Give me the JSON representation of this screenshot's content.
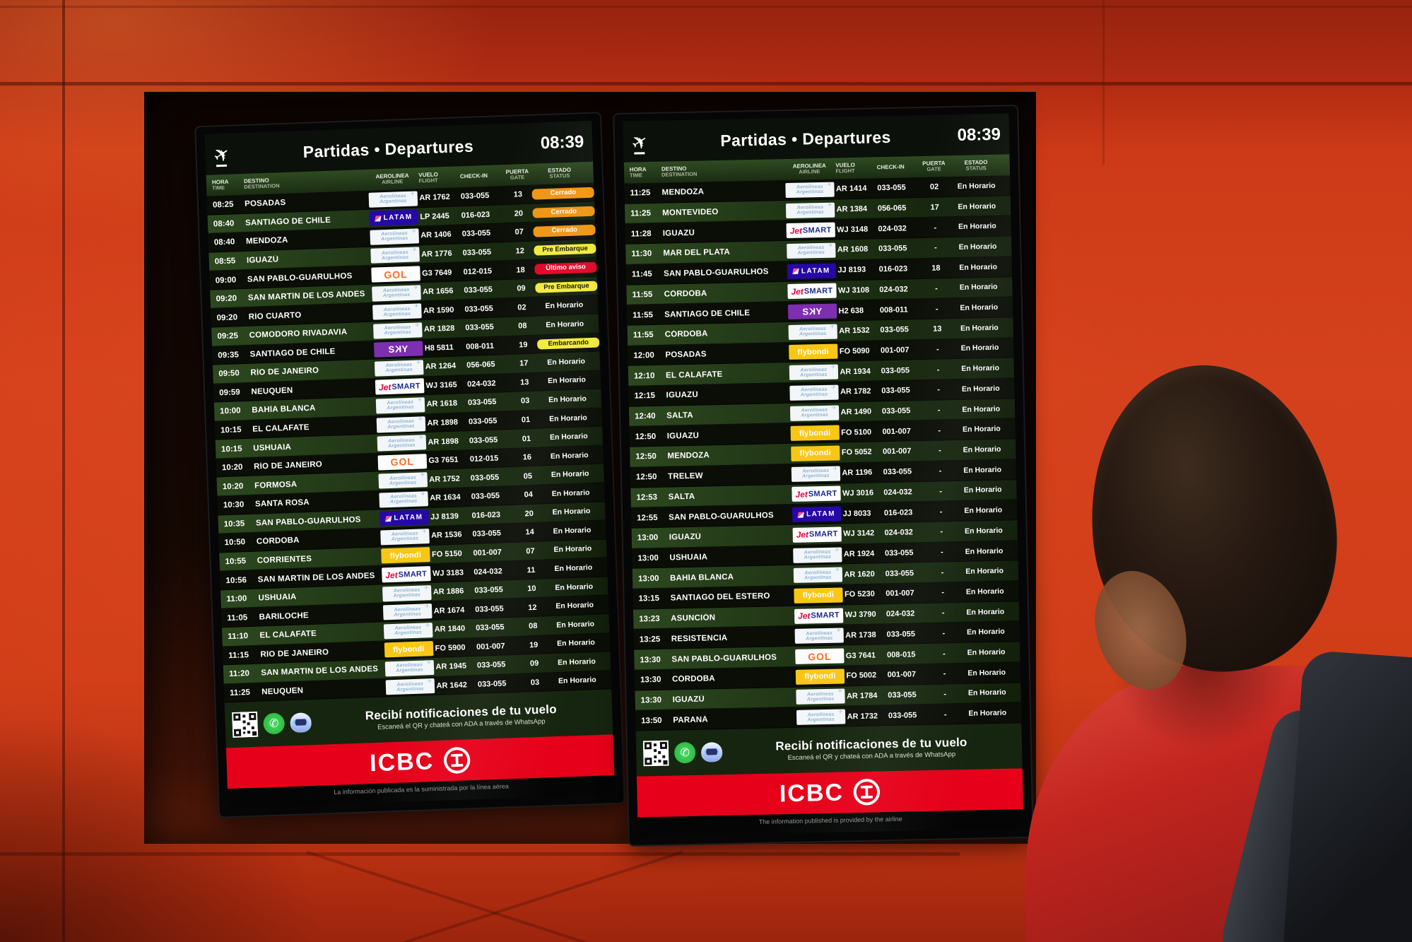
{
  "icons": {
    "plane": "✈",
    "whatsapp": "✆"
  },
  "columns": [
    {
      "es": "HORA",
      "en": "TIME"
    },
    {
      "es": "DESTINO",
      "en": "DESTINATION"
    },
    {
      "es": "AEROLINEA",
      "en": "AIRLINE"
    },
    {
      "es": "VUELO",
      "en": "FLIGHT"
    },
    {
      "es": "CHECK-IN",
      "en": ""
    },
    {
      "es": "PUERTA",
      "en": "GATE"
    },
    {
      "es": "ESTADO",
      "en": "STATUS"
    }
  ],
  "airlines": {
    "aerolineas": {
      "name": "Aerolíneas Argentinas",
      "line1": "Aerolíneas",
      "line2": "Argentinas"
    },
    "latam": {
      "name": "LATAM",
      "text": "LATAM"
    },
    "gol": {
      "name": "GOL",
      "text": "GOL"
    },
    "sky": {
      "name": "SKY",
      "s": "S",
      "k": "K",
      "y": "Y"
    },
    "jetsmart": {
      "name": "JetSMART",
      "jet": "Jet",
      "smart": "SMART"
    },
    "flybondi": {
      "name": "flybondi",
      "text": "flybondi"
    }
  },
  "statuses": {
    "cerrado": {
      "label": "Cerrado",
      "bg": "#ef9512",
      "fg": "#ffffff",
      "pill": true
    },
    "pre-embarque": {
      "label": "Pre Embarque",
      "bg": "#f2ea3d",
      "fg": "#14140a",
      "pill": true
    },
    "ultimo-aviso": {
      "label": "Último aviso",
      "bg": "#e00424",
      "fg": "#ffffff",
      "pill": true
    },
    "embarcando": {
      "label": "Embarcando",
      "bg": "#f2ea3d",
      "fg": "#14140a",
      "pill": true
    },
    "en-horario": {
      "label": "En Horario",
      "bg": "",
      "fg": "#ffffff",
      "pill": false
    }
  },
  "boards": [
    {
      "title": "Partidas • Departures",
      "clock": "08:39",
      "notify_title": "Recibí notificaciones de tu vuelo",
      "notify_subtitle": "Escaneá el QR y chateá con ADA a través de WhatsApp",
      "sponsor": "ICBC",
      "disclaimer": "La información publicada es la suministrada por la línea aérea",
      "rows": [
        [
          "08:25",
          "POSADAS",
          "aerolineas",
          "AR 1762",
          "033-055",
          "13",
          "cerrado"
        ],
        [
          "08:40",
          "SANTIAGO DE CHILE",
          "latam",
          "LP 2445",
          "016-023",
          "20",
          "cerrado"
        ],
        [
          "08:40",
          "MENDOZA",
          "aerolineas",
          "AR 1406",
          "033-055",
          "07",
          "cerrado"
        ],
        [
          "08:55",
          "IGUAZÚ",
          "aerolineas",
          "AR 1776",
          "033-055",
          "12",
          "pre-embarque"
        ],
        [
          "09:00",
          "SAN PABLO-GUARULHOS",
          "gol",
          "G3 7649",
          "012-015",
          "18",
          "ultimo-aviso"
        ],
        [
          "09:20",
          "SAN MARTÍN DE LOS ANDES",
          "aerolineas",
          "AR 1656",
          "033-055",
          "09",
          "pre-embarque"
        ],
        [
          "09:20",
          "RÍO CUARTO",
          "aerolineas",
          "AR 1590",
          "033-055",
          "02",
          "en-horario"
        ],
        [
          "09:25",
          "COMODORO RIVADAVIA",
          "aerolineas",
          "AR 1828",
          "033-055",
          "08",
          "en-horario"
        ],
        [
          "09:35",
          "SANTIAGO DE CHILE",
          "sky",
          "H8 5811",
          "008-011",
          "19",
          "embarcando"
        ],
        [
          "09:50",
          "RÍO DE JANEIRO",
          "aerolineas",
          "AR 1264",
          "056-065",
          "17",
          "en-horario"
        ],
        [
          "09:59",
          "NEUQUÉN",
          "jetsmart",
          "WJ 3165",
          "024-032",
          "13",
          "en-horario"
        ],
        [
          "10:00",
          "BAHÍA BLANCA",
          "aerolineas",
          "AR 1618",
          "033-055",
          "03",
          "en-horario"
        ],
        [
          "10:15",
          "EL CALAFATE",
          "aerolineas",
          "AR 1898",
          "033-055",
          "01",
          "en-horario"
        ],
        [
          "10:15",
          "USHUAIA",
          "aerolineas",
          "AR 1898",
          "033-055",
          "01",
          "en-horario"
        ],
        [
          "10:20",
          "RÍO DE JANEIRO",
          "gol",
          "G3 7651",
          "012-015",
          "16",
          "en-horario"
        ],
        [
          "10:20",
          "FORMOSA",
          "aerolineas",
          "AR 1752",
          "033-055",
          "05",
          "en-horario"
        ],
        [
          "10:30",
          "SANTA ROSA",
          "aerolineas",
          "AR 1634",
          "033-055",
          "04",
          "en-horario"
        ],
        [
          "10:35",
          "SAN PABLO-GUARULHOS",
          "latam",
          "JJ 8139",
          "016-023",
          "20",
          "en-horario"
        ],
        [
          "10:50",
          "CÓRDOBA",
          "aerolineas",
          "AR 1536",
          "033-055",
          "14",
          "en-horario"
        ],
        [
          "10:55",
          "CORRIENTES",
          "flybondi",
          "FO 5150",
          "001-007",
          "07",
          "en-horario"
        ],
        [
          "10:56",
          "SAN MARTÍN DE LOS ANDES",
          "jetsmart",
          "WJ 3183",
          "024-032",
          "11",
          "en-horario"
        ],
        [
          "11:00",
          "USHUAIA",
          "aerolineas",
          "AR 1886",
          "033-055",
          "10",
          "en-horario"
        ],
        [
          "11:05",
          "BARILOCHE",
          "aerolineas",
          "AR 1674",
          "033-055",
          "12",
          "en-horario"
        ],
        [
          "11:10",
          "EL CALAFATE",
          "aerolineas",
          "AR 1840",
          "033-055",
          "08",
          "en-horario"
        ],
        [
          "11:15",
          "RÍO DE JANEIRO",
          "flybondi",
          "FO 5900",
          "001-007",
          "19",
          "en-horario"
        ],
        [
          "11:20",
          "SAN MARTÍN DE LOS ANDES",
          "aerolineas",
          "AR 1945",
          "033-055",
          "09",
          "en-horario"
        ],
        [
          "11:25",
          "NEUQUÉN",
          "aerolineas",
          "AR 1642",
          "033-055",
          "03",
          "en-horario"
        ]
      ]
    },
    {
      "title": "Partidas • Departures",
      "clock": "08:39",
      "notify_title": "Recibí notificaciones de tu vuelo",
      "notify_subtitle": "Escaneá el QR y chateá con ADA a través de WhatsApp",
      "sponsor": "ICBC",
      "disclaimer": "The information published is provided by the airline",
      "rows": [
        [
          "11:25",
          "MENDOZA",
          "aerolineas",
          "AR 1414",
          "033-055",
          "02",
          "en-horario"
        ],
        [
          "11:25",
          "MONTEVIDEO",
          "aerolineas",
          "AR 1384",
          "056-065",
          "17",
          "en-horario"
        ],
        [
          "11:28",
          "IGUAZÚ",
          "jetsmart",
          "WJ 3148",
          "024-032",
          "-",
          "en-horario"
        ],
        [
          "11:30",
          "MAR DEL PLATA",
          "aerolineas",
          "AR 1608",
          "033-055",
          "-",
          "en-horario"
        ],
        [
          "11:45",
          "SAN PABLO-GUARULHOS",
          "latam",
          "JJ 8193",
          "016-023",
          "18",
          "en-horario"
        ],
        [
          "11:55",
          "CÓRDOBA",
          "jetsmart",
          "WJ 3108",
          "024-032",
          "-",
          "en-horario"
        ],
        [
          "11:55",
          "SANTIAGO DE CHILE",
          "sky",
          "H2 638",
          "008-011",
          "-",
          "en-horario"
        ],
        [
          "11:55",
          "CÓRDOBA",
          "aerolineas",
          "AR 1532",
          "033-055",
          "13",
          "en-horario"
        ],
        [
          "12:00",
          "POSADAS",
          "flybondi",
          "FO 5090",
          "001-007",
          "-",
          "en-horario"
        ],
        [
          "12:10",
          "EL CALAFATE",
          "aerolineas",
          "AR 1934",
          "033-055",
          "-",
          "en-horario"
        ],
        [
          "12:15",
          "IGUAZÚ",
          "aerolineas",
          "AR 1782",
          "033-055",
          "-",
          "en-horario"
        ],
        [
          "12:40",
          "SALTA",
          "aerolineas",
          "AR 1490",
          "033-055",
          "-",
          "en-horario"
        ],
        [
          "12:50",
          "IGUAZÚ",
          "flybondi",
          "FO 5100",
          "001-007",
          "-",
          "en-horario"
        ],
        [
          "12:50",
          "MENDOZA",
          "flybondi",
          "FO 5052",
          "001-007",
          "-",
          "en-horario"
        ],
        [
          "12:50",
          "TRELEW",
          "aerolineas",
          "AR 1196",
          "033-055",
          "-",
          "en-horario"
        ],
        [
          "12:53",
          "SALTA",
          "jetsmart",
          "WJ 3016",
          "024-032",
          "-",
          "en-horario"
        ],
        [
          "12:55",
          "SAN PABLO-GUARULHOS",
          "latam",
          "JJ 8033",
          "016-023",
          "-",
          "en-horario"
        ],
        [
          "13:00",
          "IGUAZÚ",
          "jetsmart",
          "WJ 3142",
          "024-032",
          "-",
          "en-horario"
        ],
        [
          "13:00",
          "USHUAIA",
          "aerolineas",
          "AR 1924",
          "033-055",
          "-",
          "en-horario"
        ],
        [
          "13:00",
          "BAHÍA BLANCA",
          "aerolineas",
          "AR 1620",
          "033-055",
          "-",
          "en-horario"
        ],
        [
          "13:15",
          "SANTIAGO DEL ESTERO",
          "flybondi",
          "FO 5230",
          "001-007",
          "-",
          "en-horario"
        ],
        [
          "13:23",
          "ASUNCIÓN",
          "jetsmart",
          "WJ 3790",
          "024-032",
          "-",
          "en-horario"
        ],
        [
          "13:25",
          "RESISTENCIA",
          "aerolineas",
          "AR 1738",
          "033-055",
          "-",
          "en-horario"
        ],
        [
          "13:30",
          "SAN PABLO-GUARULHOS",
          "gol",
          "G3 7641",
          "008-015",
          "-",
          "en-horario"
        ],
        [
          "13:30",
          "CÓRDOBA",
          "flybondi",
          "FO 5002",
          "001-007",
          "-",
          "en-horario"
        ],
        [
          "13:30",
          "IGUAZÚ",
          "aerolineas",
          "AR 1784",
          "033-055",
          "-",
          "en-horario"
        ],
        [
          "13:50",
          "PARANÁ",
          "aerolineas",
          "AR 1732",
          "033-055",
          "-",
          "en-horario"
        ]
      ]
    }
  ]
}
